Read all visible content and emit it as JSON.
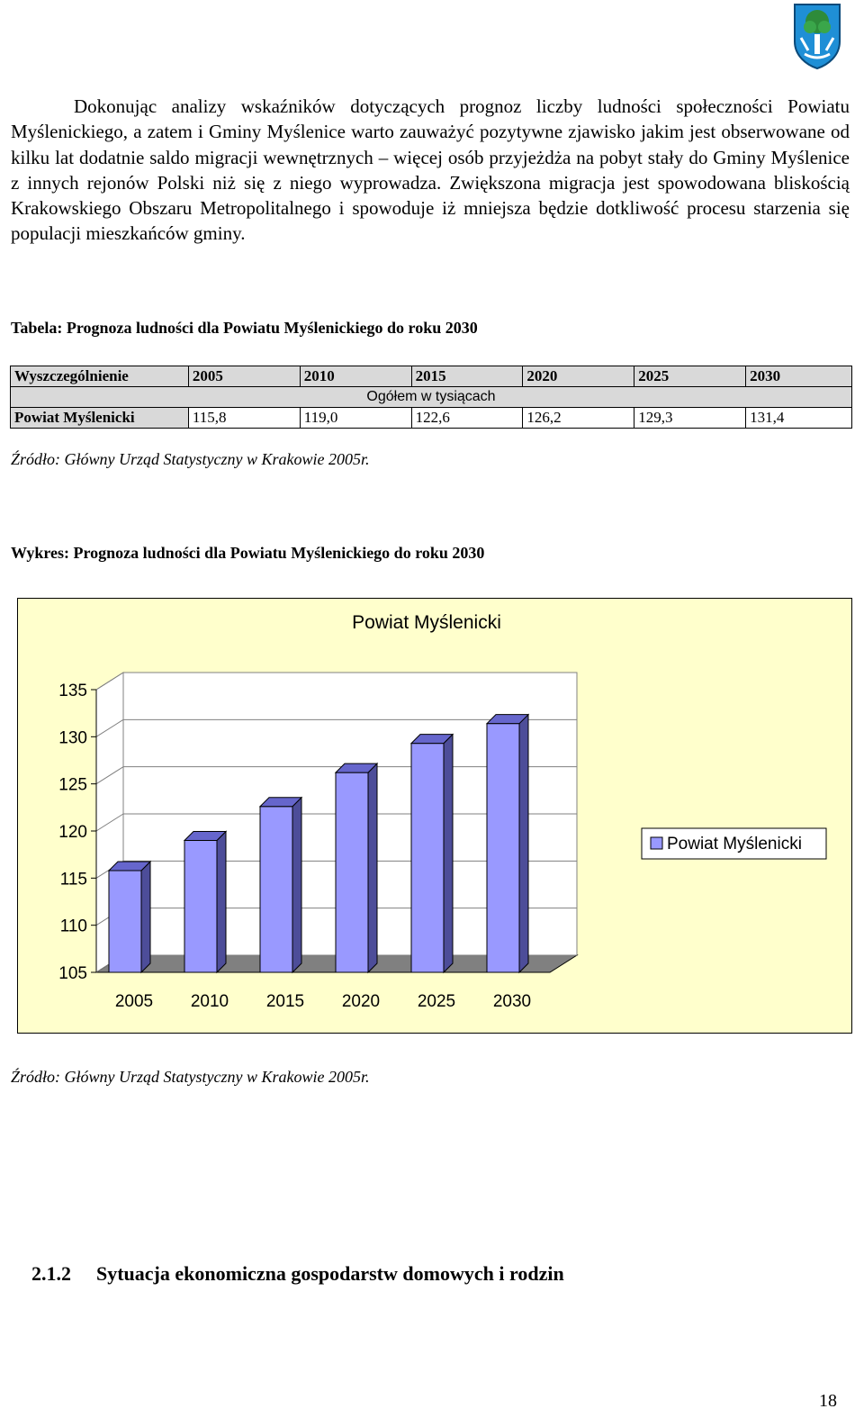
{
  "body_text": {
    "paragraph": "Dokonując analizy wskaźników dotyczących prognoz liczby ludności społeczności Powiatu Myślenickiego, a zatem i Gminy Myślenice warto zauważyć pozytywne zjawisko jakim jest  obserwowane od kilku lat  dodatnie saldo migracji wewnętrznych – więcej osób przyjeżdża na pobyt stały do Gminy Myślenice z innych rejonów Polski niż się z niego wyprowadza. Zwiększona migracja jest spowodowana bliskością Krakowskiego Obszaru Metropolitalnego i spowoduje iż mniejsza będzie dotkliwość procesu starzenia się populacji mieszkańców gminy."
  },
  "table": {
    "caption": "Tabela: Prognoza ludności dla Powiatu Myślenickiego do roku 2030",
    "headers": [
      "Wyszczególnienie",
      "2005",
      "2010",
      "2015",
      "2020",
      "2025",
      "2030"
    ],
    "subheader": "Ogółem w tysiącach",
    "row_label": "Powiat Myślenicki",
    "row_values": [
      "115,8",
      "119,0",
      "122,6",
      "126,2",
      "129,3",
      "131,4"
    ],
    "source": "Źródło: Główny Urząd Statystyczny  w Krakowie 2005r."
  },
  "chart": {
    "caption": "Wykres: Prognoza ludności dla Powiatu Myślenickiego do roku 2030",
    "source": "Źródło: Główny Urząd Statystyczny  w Krakowie 2005r."
  },
  "chart_data": {
    "type": "bar",
    "title": "Powiat Myślenicki",
    "categories": [
      "2005",
      "2010",
      "2015",
      "2020",
      "2025",
      "2030"
    ],
    "series": [
      {
        "name": "Powiat Myślenicki",
        "values": [
          115.8,
          119.0,
          122.6,
          126.2,
          129.3,
          131.4
        ]
      }
    ],
    "yticks": [
      "105",
      "110",
      "115",
      "120",
      "125",
      "130",
      "135"
    ],
    "ylim": [
      105,
      135
    ],
    "legend": "right",
    "three_d": true,
    "colors": {
      "background": "#ffffcc",
      "bar_front": "#9999ff",
      "bar_side": "#4d4d99",
      "bar_top": "#6666cc",
      "wall": "#ffffff",
      "floor": "#808080"
    }
  },
  "section_heading": {
    "number": "2.1.2",
    "title": "Sytuacja ekonomiczna gospodarstw domowych i rodzin"
  },
  "page_number": "18",
  "logo": {
    "icon": "coat-of-arms-icon"
  }
}
